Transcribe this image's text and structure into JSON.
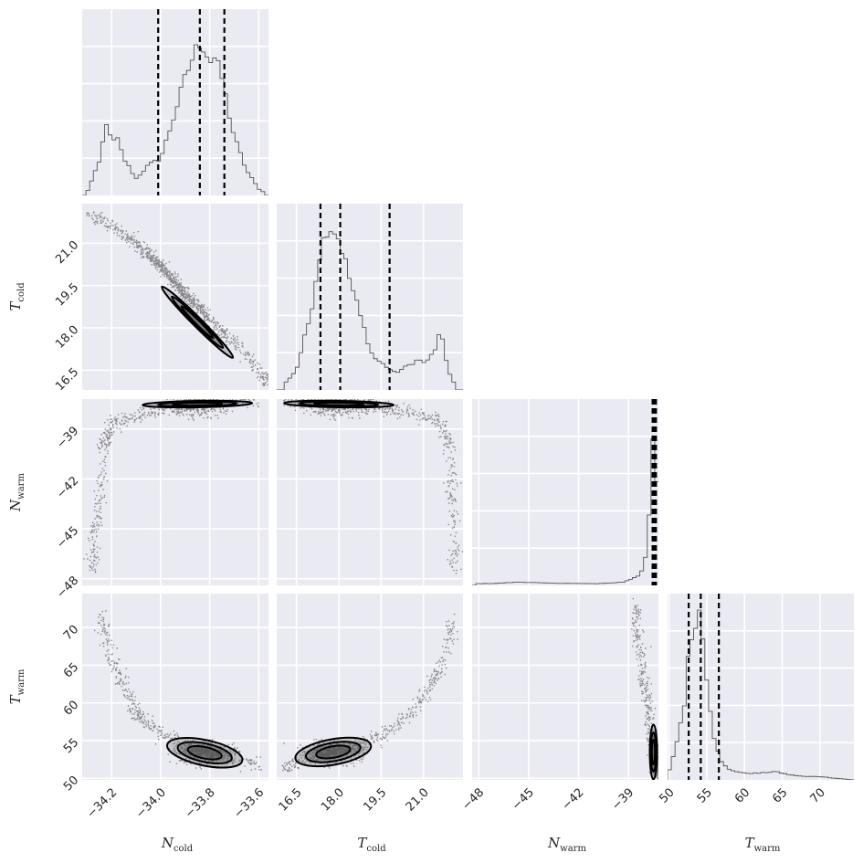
{
  "chart_data": {
    "type": "corner",
    "title": "",
    "parameters": [
      {
        "key": "N_cold",
        "label_main": "N",
        "label_sub": "cold",
        "range": [
          -34.32,
          -33.56
        ],
        "ticks": [
          -34.2,
          -34.0,
          -33.8,
          -33.6
        ],
        "tick_labels": [
          "−34.2",
          "−34.0",
          "−33.8",
          "−33.6"
        ]
      },
      {
        "key": "T_cold",
        "label_main": "T",
        "label_sub": "cold",
        "range": [
          15.8,
          22.4
        ],
        "ticks": [
          16.5,
          18.0,
          19.5,
          21.0
        ],
        "tick_labels": [
          "16.5",
          "18.0",
          "19.5",
          "21.0"
        ]
      },
      {
        "key": "N_warm",
        "label_main": "N",
        "label_sub": "warm",
        "range": [
          -48.4,
          -37.2
        ],
        "ticks": [
          -48,
          -45,
          -42,
          -39
        ],
        "tick_labels": [
          "−48",
          "−45",
          "−42",
          "−39"
        ]
      },
      {
        "key": "T_warm",
        "label_main": "T",
        "label_sub": "warm",
        "range": [
          49.8,
          74.5
        ],
        "ticks": [
          50,
          55,
          60,
          65,
          70
        ],
        "tick_labels": [
          "50",
          "55",
          "60",
          "65",
          "70"
        ]
      }
    ],
    "quantiles": {
      "N_cold": [
        -34.01,
        -33.84,
        -33.74
      ],
      "T_cold": [
        17.35,
        18.05,
        19.8
      ],
      "N_warm": [
        -37.55,
        -37.45,
        -37.35
      ],
      "T_warm": [
        52.6,
        54.2,
        56.6
      ]
    },
    "histograms": {
      "N_cold": {
        "x": [
          -34.3,
          -34.25,
          -34.22,
          -34.2,
          -34.18,
          -34.15,
          -34.1,
          -34.05,
          -34.0,
          -33.95,
          -33.9,
          -33.87,
          -33.84,
          -33.82,
          -33.8,
          -33.78,
          -33.75,
          -33.72,
          -33.7,
          -33.65,
          -33.6,
          -33.57
        ],
        "y": [
          0.02,
          0.2,
          0.45,
          0.3,
          0.35,
          0.22,
          0.1,
          0.18,
          0.22,
          0.45,
          0.7,
          0.82,
          0.92,
          0.88,
          0.8,
          0.82,
          0.7,
          0.48,
          0.35,
          0.15,
          0.04,
          0.01
        ]
      },
      "T_cold": {
        "x": [
          16.0,
          16.5,
          17.0,
          17.3,
          17.6,
          17.9,
          18.1,
          18.4,
          18.8,
          19.2,
          19.6,
          20.0,
          20.4,
          20.8,
          21.1,
          21.4,
          21.6,
          21.8,
          22.0,
          22.2
        ],
        "y": [
          0.02,
          0.12,
          0.45,
          0.8,
          0.98,
          0.95,
          0.85,
          0.65,
          0.42,
          0.2,
          0.15,
          0.1,
          0.14,
          0.18,
          0.16,
          0.24,
          0.35,
          0.18,
          0.06,
          0.02
        ]
      },
      "N_warm": {
        "x": [
          -48.2,
          -47,
          -45.5,
          -44,
          -42.5,
          -41,
          -40,
          -39.3,
          -38.8,
          -38.4,
          -38.1,
          -37.9,
          -37.7,
          -37.55,
          -37.45,
          -37.35,
          -37.25
        ],
        "y": [
          0.01,
          0.012,
          0.02,
          0.014,
          0.012,
          0.01,
          0.015,
          0.02,
          0.04,
          0.06,
          0.1,
          0.2,
          0.5,
          0.85,
          1.0,
          0.9,
          0.1
        ]
      },
      "T_warm": {
        "x": [
          50,
          51,
          52,
          52.5,
          53,
          53.5,
          54,
          54.5,
          55,
          55.5,
          56,
          57,
          58,
          60,
          62,
          64,
          66,
          68,
          70,
          72,
          74.5
        ],
        "y": [
          0.05,
          0.22,
          0.45,
          0.7,
          0.85,
          0.96,
          1.0,
          0.85,
          0.62,
          0.42,
          0.25,
          0.1,
          0.06,
          0.04,
          0.04,
          0.05,
          0.03,
          0.02,
          0.02,
          0.01,
          0.0
        ]
      }
    },
    "pairs": [
      {
        "x": "N_cold",
        "y": "T_cold",
        "relation": "linear",
        "center": [
          -33.85,
          18.2
        ],
        "points": [
          [
            -34.3,
            22.1
          ],
          [
            -34.2,
            21.6
          ],
          [
            -34.1,
            21.0
          ],
          [
            -34.0,
            20.2
          ],
          [
            -33.9,
            19.2
          ],
          [
            -33.8,
            18.3
          ],
          [
            -33.7,
            17.5
          ],
          [
            -33.6,
            16.5
          ],
          [
            -33.56,
            16.0
          ]
        ]
      },
      {
        "x": "N_cold",
        "y": "N_warm",
        "relation": "curved",
        "center": [
          -33.85,
          -37.5
        ],
        "points": [
          [
            -34.28,
            -47.5
          ],
          [
            -34.27,
            -45.5
          ],
          [
            -34.25,
            -43.0
          ],
          [
            -34.24,
            -40.0
          ],
          [
            -34.2,
            -38.6
          ],
          [
            -34.1,
            -38.2
          ],
          [
            -34.0,
            -37.7
          ],
          [
            -33.9,
            -37.5
          ],
          [
            -33.75,
            -37.4
          ],
          [
            -33.6,
            -37.3
          ]
        ]
      },
      {
        "x": "T_cold",
        "y": "N_warm",
        "relation": "curved",
        "center": [
          18.0,
          -37.5
        ],
        "points": [
          [
            16.0,
            -37.3
          ],
          [
            17.0,
            -37.4
          ],
          [
            18.0,
            -37.5
          ],
          [
            19.0,
            -37.6
          ],
          [
            20.0,
            -37.8
          ],
          [
            21.0,
            -38.2
          ],
          [
            21.6,
            -38.6
          ],
          [
            21.9,
            -40.0
          ],
          [
            22.0,
            -43.0
          ],
          [
            22.05,
            -45.5
          ],
          [
            22.1,
            -47.5
          ]
        ]
      },
      {
        "x": "N_cold",
        "y": "T_warm",
        "relation": "curved",
        "center": [
          -33.82,
          53.4
        ],
        "points": [
          [
            -34.25,
            72.0
          ],
          [
            -34.2,
            66.0
          ],
          [
            -34.15,
            62.0
          ],
          [
            -34.1,
            58.5
          ],
          [
            -34.0,
            56.0
          ],
          [
            -33.9,
            54.4
          ],
          [
            -33.8,
            53.4
          ],
          [
            -33.7,
            52.6
          ],
          [
            -33.6,
            51.8
          ]
        ]
      },
      {
        "x": "T_cold",
        "y": "T_warm",
        "relation": "curved",
        "center": [
          17.8,
          53.5
        ],
        "points": [
          [
            16.0,
            51.5
          ],
          [
            16.8,
            52.6
          ],
          [
            17.5,
            53.4
          ],
          [
            18.3,
            54.0
          ],
          [
            19.2,
            55.2
          ],
          [
            20.0,
            57.0
          ],
          [
            20.8,
            60.0
          ],
          [
            21.4,
            63.5
          ],
          [
            21.8,
            67.0
          ],
          [
            22.0,
            71.0
          ]
        ]
      },
      {
        "x": "N_warm",
        "y": "T_warm",
        "relation": "steep",
        "center": [
          -37.5,
          53.5
        ],
        "points": [
          [
            -38.6,
            73.0
          ],
          [
            -38.4,
            68.0
          ],
          [
            -38.2,
            64.0
          ],
          [
            -37.9,
            60.0
          ],
          [
            -37.6,
            56.0
          ],
          [
            -37.45,
            53.0
          ],
          [
            -37.3,
            50.5
          ]
        ]
      }
    ]
  }
}
